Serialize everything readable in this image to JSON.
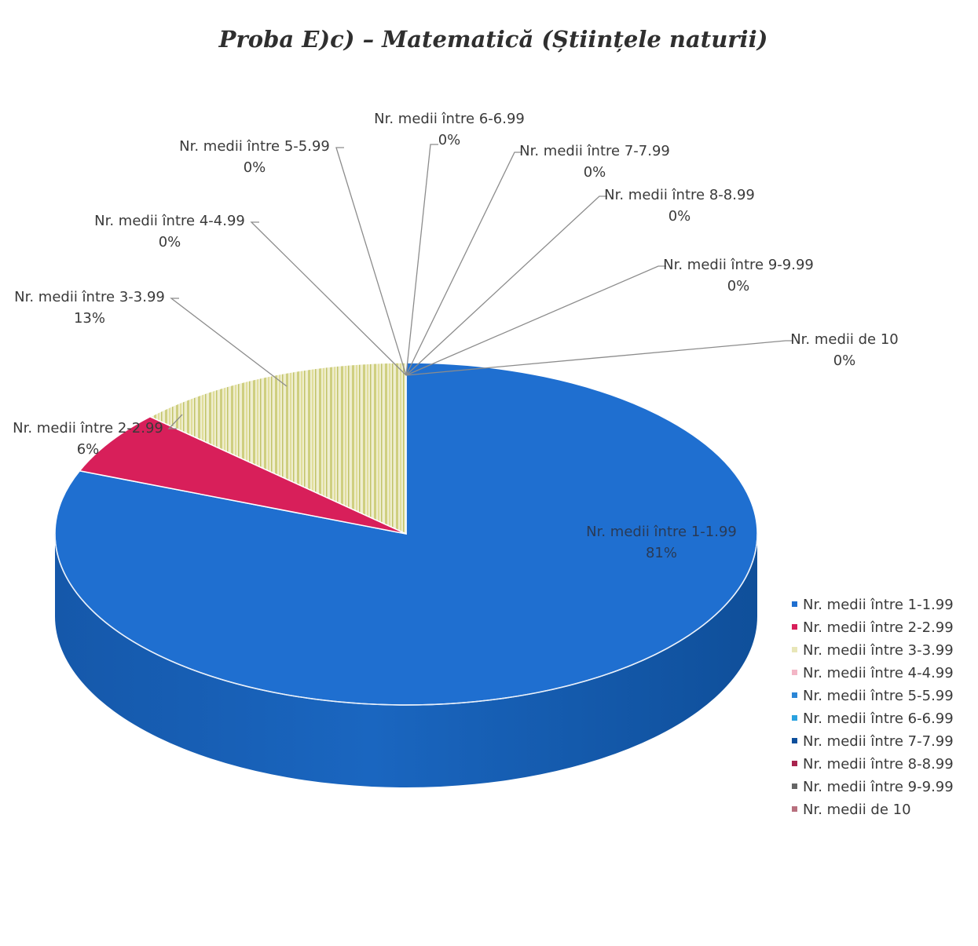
{
  "chart_data": {
    "type": "pie",
    "style": "3d",
    "title": "Proba E)c) – Matematică (Științele naturii)",
    "categories": [
      "Nr. medii între 1-1.99",
      "Nr. medii între 2-2.99",
      "Nr. medii între 3-3.99",
      "Nr. medii între 4-4.99",
      "Nr. medii între 5-5.99",
      "Nr. medii între 6-6.99",
      "Nr. medii între 7-7.99",
      "Nr. medii între 8-8.99",
      "Nr. medii între 9-9.99",
      "Nr. medii de 10"
    ],
    "values": [
      81,
      6,
      13,
      0,
      0,
      0,
      0,
      0,
      0,
      0
    ],
    "value_labels": [
      "81%",
      "6%",
      "13%",
      "0%",
      "0%",
      "0%",
      "0%",
      "0%",
      "0%",
      "0%"
    ],
    "unit": "%",
    "colors": [
      "#1f6fd0",
      "#d81f5a",
      "#e8e6b8",
      "#f3b6c6",
      "#2b86d6",
      "#2aa2e0",
      "#0d4f9c",
      "#a8244e",
      "#666666",
      "#b8707e"
    ],
    "legend_position": "right"
  }
}
